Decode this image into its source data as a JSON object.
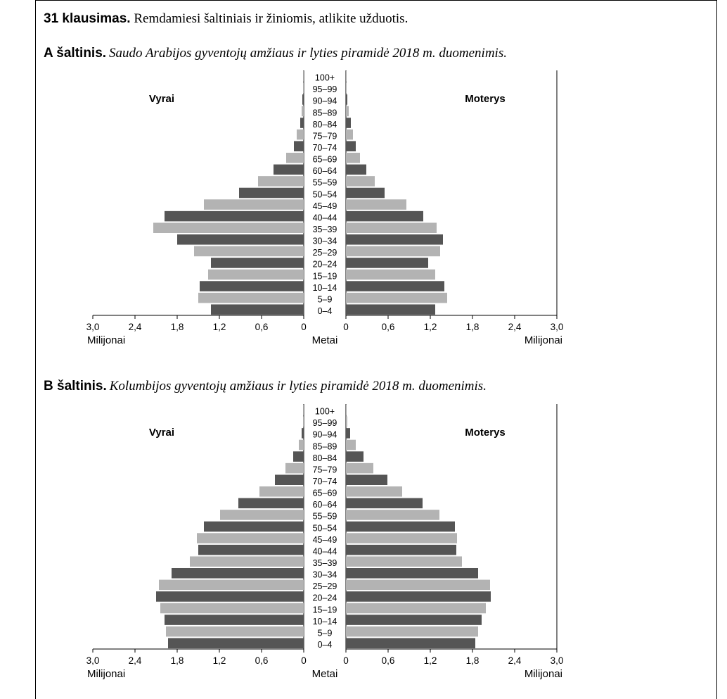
{
  "question": {
    "number": "31 klausimas.",
    "text": "Remdamiesi šaltiniais ir žiniomis, atlikite užduotis."
  },
  "chart_data": [
    {
      "type": "bar",
      "source_label": "A šaltinis.",
      "title": "Saudo Arabijos gyventojų amžiaus ir lyties piramidė 2018 m. duomenimis.",
      "left_label": "Vyrai",
      "right_label": "Moterys",
      "xlabel_left": "Milijonai",
      "xlabel_center": "Metai",
      "xlabel_right": "Milijonai",
      "xlim": [
        0,
        3.0
      ],
      "ticks_left": [
        "3,0",
        "2,4",
        "1,8",
        "1,2",
        "0,6",
        "0"
      ],
      "ticks_right": [
        "0",
        "0,6",
        "1,2",
        "1,8",
        "2,4",
        "3,0"
      ],
      "categories": [
        "100+",
        "95–99",
        "90–94",
        "85–89",
        "80–84",
        "75–79",
        "70–74",
        "65–69",
        "60–64",
        "55–59",
        "50–54",
        "45–49",
        "40–44",
        "35–39",
        "30–34",
        "25–29",
        "20–24",
        "15–19",
        "10–14",
        "5–9",
        "0–4"
      ],
      "series": [
        {
          "name": "Vyrai",
          "values": [
            0.005,
            0.01,
            0.02,
            0.03,
            0.05,
            0.1,
            0.14,
            0.25,
            0.43,
            0.65,
            0.92,
            1.42,
            1.98,
            2.14,
            1.8,
            1.56,
            1.32,
            1.36,
            1.48,
            1.5,
            1.32
          ]
        },
        {
          "name": "Moterys",
          "values": [
            0.005,
            0.01,
            0.02,
            0.04,
            0.07,
            0.1,
            0.14,
            0.2,
            0.29,
            0.41,
            0.55,
            0.86,
            1.1,
            1.29,
            1.38,
            1.34,
            1.17,
            1.27,
            1.4,
            1.44,
            1.27
          ]
        }
      ]
    },
    {
      "type": "bar",
      "source_label": "B šaltinis.",
      "title": "Kolumbijos gyventojų amžiaus ir lyties piramidė 2018 m. duomenimis.",
      "left_label": "Vyrai",
      "right_label": "Moterys",
      "xlabel_left": "Milijonai",
      "xlabel_center": "Metai",
      "xlabel_right": "Milijonai",
      "xlim": [
        0,
        3.0
      ],
      "ticks_left": [
        "3,0",
        "2,4",
        "1,8",
        "1,2",
        "0,6",
        "0"
      ],
      "ticks_right": [
        "0",
        "0,6",
        "1,2",
        "1,8",
        "2,4",
        "3,0"
      ],
      "categories": [
        "100+",
        "95–99",
        "90–94",
        "85–89",
        "80–84",
        "75–79",
        "70–74",
        "65–69",
        "60–64",
        "55–59",
        "50–54",
        "45–49",
        "40–44",
        "35–39",
        "30–34",
        "25–29",
        "20–24",
        "15–19",
        "10–14",
        "5–9",
        "0–4"
      ],
      "series": [
        {
          "name": "Vyrai",
          "values": [
            0.005,
            0.01,
            0.03,
            0.07,
            0.15,
            0.26,
            0.41,
            0.63,
            0.93,
            1.19,
            1.42,
            1.52,
            1.5,
            1.62,
            1.88,
            2.06,
            2.1,
            2.04,
            1.98,
            1.96,
            1.93
          ]
        },
        {
          "name": "Moterys",
          "values": [
            0.005,
            0.02,
            0.06,
            0.14,
            0.25,
            0.39,
            0.59,
            0.8,
            1.09,
            1.33,
            1.55,
            1.58,
            1.57,
            1.65,
            1.88,
            2.05,
            2.06,
            1.99,
            1.93,
            1.88,
            1.84
          ]
        }
      ]
    }
  ]
}
